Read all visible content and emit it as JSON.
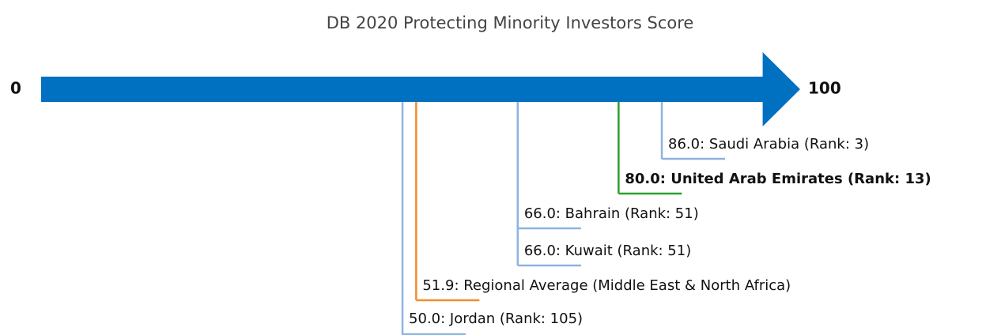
{
  "chart_data": {
    "type": "numberline",
    "title": "DB 2020 Protecting Minority Investors Score",
    "xlim": [
      0,
      100
    ],
    "xticks": [
      0,
      100
    ],
    "axis_color": "#0070c0",
    "values": [
      86.0,
      80.0,
      66.0,
      66.0,
      51.9,
      50.0
    ],
    "value_labels": [
      "86.0: Saudi Arabia (Rank: 3)",
      "80.0: United Arab Emirates (Rank: 13)",
      "66.0: Bahrain (Rank: 51)",
      "66.0: Kuwait (Rank: 51)",
      "51.9: Regional Average (Middle East & North Africa)",
      "50.0: Jordan (Rank: 105)"
    ],
    "colors": [
      "#8db3e2",
      "#2ca02c",
      "#8db3e2",
      "#8db3e2",
      "#f28e2b",
      "#8db3e2"
    ],
    "bold": [
      false,
      true,
      false,
      false,
      false,
      false
    ]
  }
}
